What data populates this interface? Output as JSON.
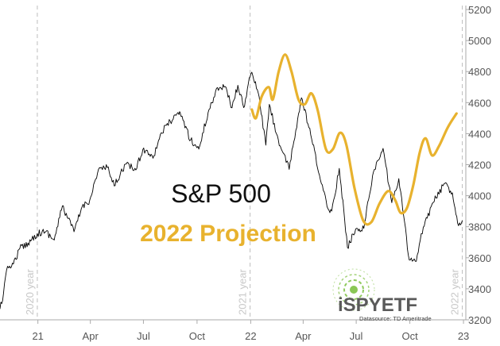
{
  "chart_data": {
    "type": "line",
    "title": "S&P 500",
    "subtitle": "2022 Projection",
    "xlabel": "",
    "ylabel": "",
    "ylim": [
      3200,
      5200
    ],
    "yticks": [
      3200,
      3400,
      3600,
      3800,
      4000,
      4200,
      4400,
      4600,
      4800,
      5000,
      5200
    ],
    "xlim": [
      "2020-10-28",
      "2023-01-05"
    ],
    "xticks": [
      {
        "date": "2021-01-01",
        "label": "21"
      },
      {
        "date": "2021-04-01",
        "label": "Apr"
      },
      {
        "date": "2021-07-01",
        "label": "Jul"
      },
      {
        "date": "2021-10-01",
        "label": "Oct"
      },
      {
        "date": "2022-01-01",
        "label": "22"
      },
      {
        "date": "2022-04-01",
        "label": "Apr"
      },
      {
        "date": "2022-07-01",
        "label": "Jul"
      },
      {
        "date": "2022-10-01",
        "label": "Oct"
      },
      {
        "date": "2023-01-01",
        "label": "23"
      }
    ],
    "year_markers": [
      {
        "date": "2020-12-31",
        "label": "2020 year"
      },
      {
        "date": "2021-12-31",
        "label": "2021 year"
      },
      {
        "date": "2022-12-30",
        "label": "2022 year"
      }
    ],
    "grid": false,
    "y_axis_side": "right",
    "series": [
      {
        "name": "S&P 500",
        "color": "#000000",
        "points": [
          [
            "2020-10-28",
            3270
          ],
          [
            "2020-11-03",
            3370
          ],
          [
            "2020-11-10",
            3545
          ],
          [
            "2020-11-20",
            3560
          ],
          [
            "2020-12-01",
            3660
          ],
          [
            "2020-12-15",
            3695
          ],
          [
            "2020-12-31",
            3756
          ],
          [
            "2021-01-15",
            3770
          ],
          [
            "2021-01-29",
            3714
          ],
          [
            "2021-02-12",
            3934
          ],
          [
            "2021-03-04",
            3768
          ],
          [
            "2021-03-18",
            3930
          ],
          [
            "2021-03-31",
            3972
          ],
          [
            "2021-04-15",
            4170
          ],
          [
            "2021-04-30",
            4181
          ],
          [
            "2021-05-12",
            4063
          ],
          [
            "2021-05-31",
            4204
          ],
          [
            "2021-06-18",
            4166
          ],
          [
            "2021-06-30",
            4298
          ],
          [
            "2021-07-19",
            4258
          ],
          [
            "2021-07-30",
            4395
          ],
          [
            "2021-08-16",
            4480
          ],
          [
            "2021-08-31",
            4523
          ],
          [
            "2021-09-02",
            4537
          ],
          [
            "2021-09-20",
            4358
          ],
          [
            "2021-10-04",
            4300
          ],
          [
            "2021-10-20",
            4536
          ],
          [
            "2021-11-05",
            4697
          ],
          [
            "2021-11-18",
            4704
          ],
          [
            "2021-11-30",
            4567
          ],
          [
            "2021-12-10",
            4712
          ],
          [
            "2021-12-20",
            4568
          ],
          [
            "2021-12-31",
            4766
          ],
          [
            "2022-01-03",
            4796
          ],
          [
            "2022-01-14",
            4662
          ],
          [
            "2022-01-27",
            4326
          ],
          [
            "2022-02-02",
            4589
          ],
          [
            "2022-02-14",
            4401
          ],
          [
            "2022-02-24",
            4288
          ],
          [
            "2022-03-08",
            4170
          ],
          [
            "2022-03-29",
            4631
          ],
          [
            "2022-04-14",
            4392
          ],
          [
            "2022-04-29",
            4132
          ],
          [
            "2022-05-12",
            3930
          ],
          [
            "2022-05-20",
            3901
          ],
          [
            "2022-06-02",
            4176
          ],
          [
            "2022-06-16",
            3666
          ],
          [
            "2022-06-30",
            3785
          ],
          [
            "2022-07-14",
            3790
          ],
          [
            "2022-07-29",
            4130
          ],
          [
            "2022-08-16",
            4305
          ],
          [
            "2022-08-31",
            3955
          ],
          [
            "2022-09-12",
            4110
          ],
          [
            "2022-09-30",
            3585
          ],
          [
            "2022-10-12",
            3577
          ],
          [
            "2022-10-24",
            3797
          ],
          [
            "2022-11-10",
            3956
          ],
          [
            "2022-11-30",
            4080
          ],
          [
            "2022-12-13",
            4019
          ],
          [
            "2022-12-22",
            3822
          ],
          [
            "2022-12-30",
            3840
          ]
        ]
      },
      {
        "name": "2022 Projection",
        "color": "#E8B22E",
        "points": [
          [
            "2022-01-03",
            4555
          ],
          [
            "2022-01-10",
            4500
          ],
          [
            "2022-01-20",
            4640
          ],
          [
            "2022-02-01",
            4700
          ],
          [
            "2022-02-08",
            4620
          ],
          [
            "2022-02-18",
            4800
          ],
          [
            "2022-03-01",
            4910
          ],
          [
            "2022-03-12",
            4800
          ],
          [
            "2022-03-24",
            4620
          ],
          [
            "2022-04-04",
            4590
          ],
          [
            "2022-04-15",
            4660
          ],
          [
            "2022-04-26",
            4550
          ],
          [
            "2022-05-10",
            4300
          ],
          [
            "2022-05-22",
            4300
          ],
          [
            "2022-06-03",
            4405
          ],
          [
            "2022-06-14",
            4330
          ],
          [
            "2022-06-28",
            4050
          ],
          [
            "2022-07-13",
            3840
          ],
          [
            "2022-07-27",
            3830
          ],
          [
            "2022-08-10",
            3950
          ],
          [
            "2022-08-25",
            4030
          ],
          [
            "2022-09-06",
            3970
          ],
          [
            "2022-09-15",
            3890
          ],
          [
            "2022-09-26",
            3920
          ],
          [
            "2022-10-07",
            4070
          ],
          [
            "2022-10-18",
            4280
          ],
          [
            "2022-10-28",
            4370
          ],
          [
            "2022-11-08",
            4260
          ],
          [
            "2022-11-20",
            4320
          ],
          [
            "2022-12-05",
            4440
          ],
          [
            "2022-12-20",
            4530
          ]
        ]
      }
    ]
  },
  "logo": {
    "text": "iSPYETF",
    "source": "Datasource: TD Ameritrade",
    "colors": {
      "primary": "#5a5a5a",
      "accent": "#7dc142"
    }
  }
}
